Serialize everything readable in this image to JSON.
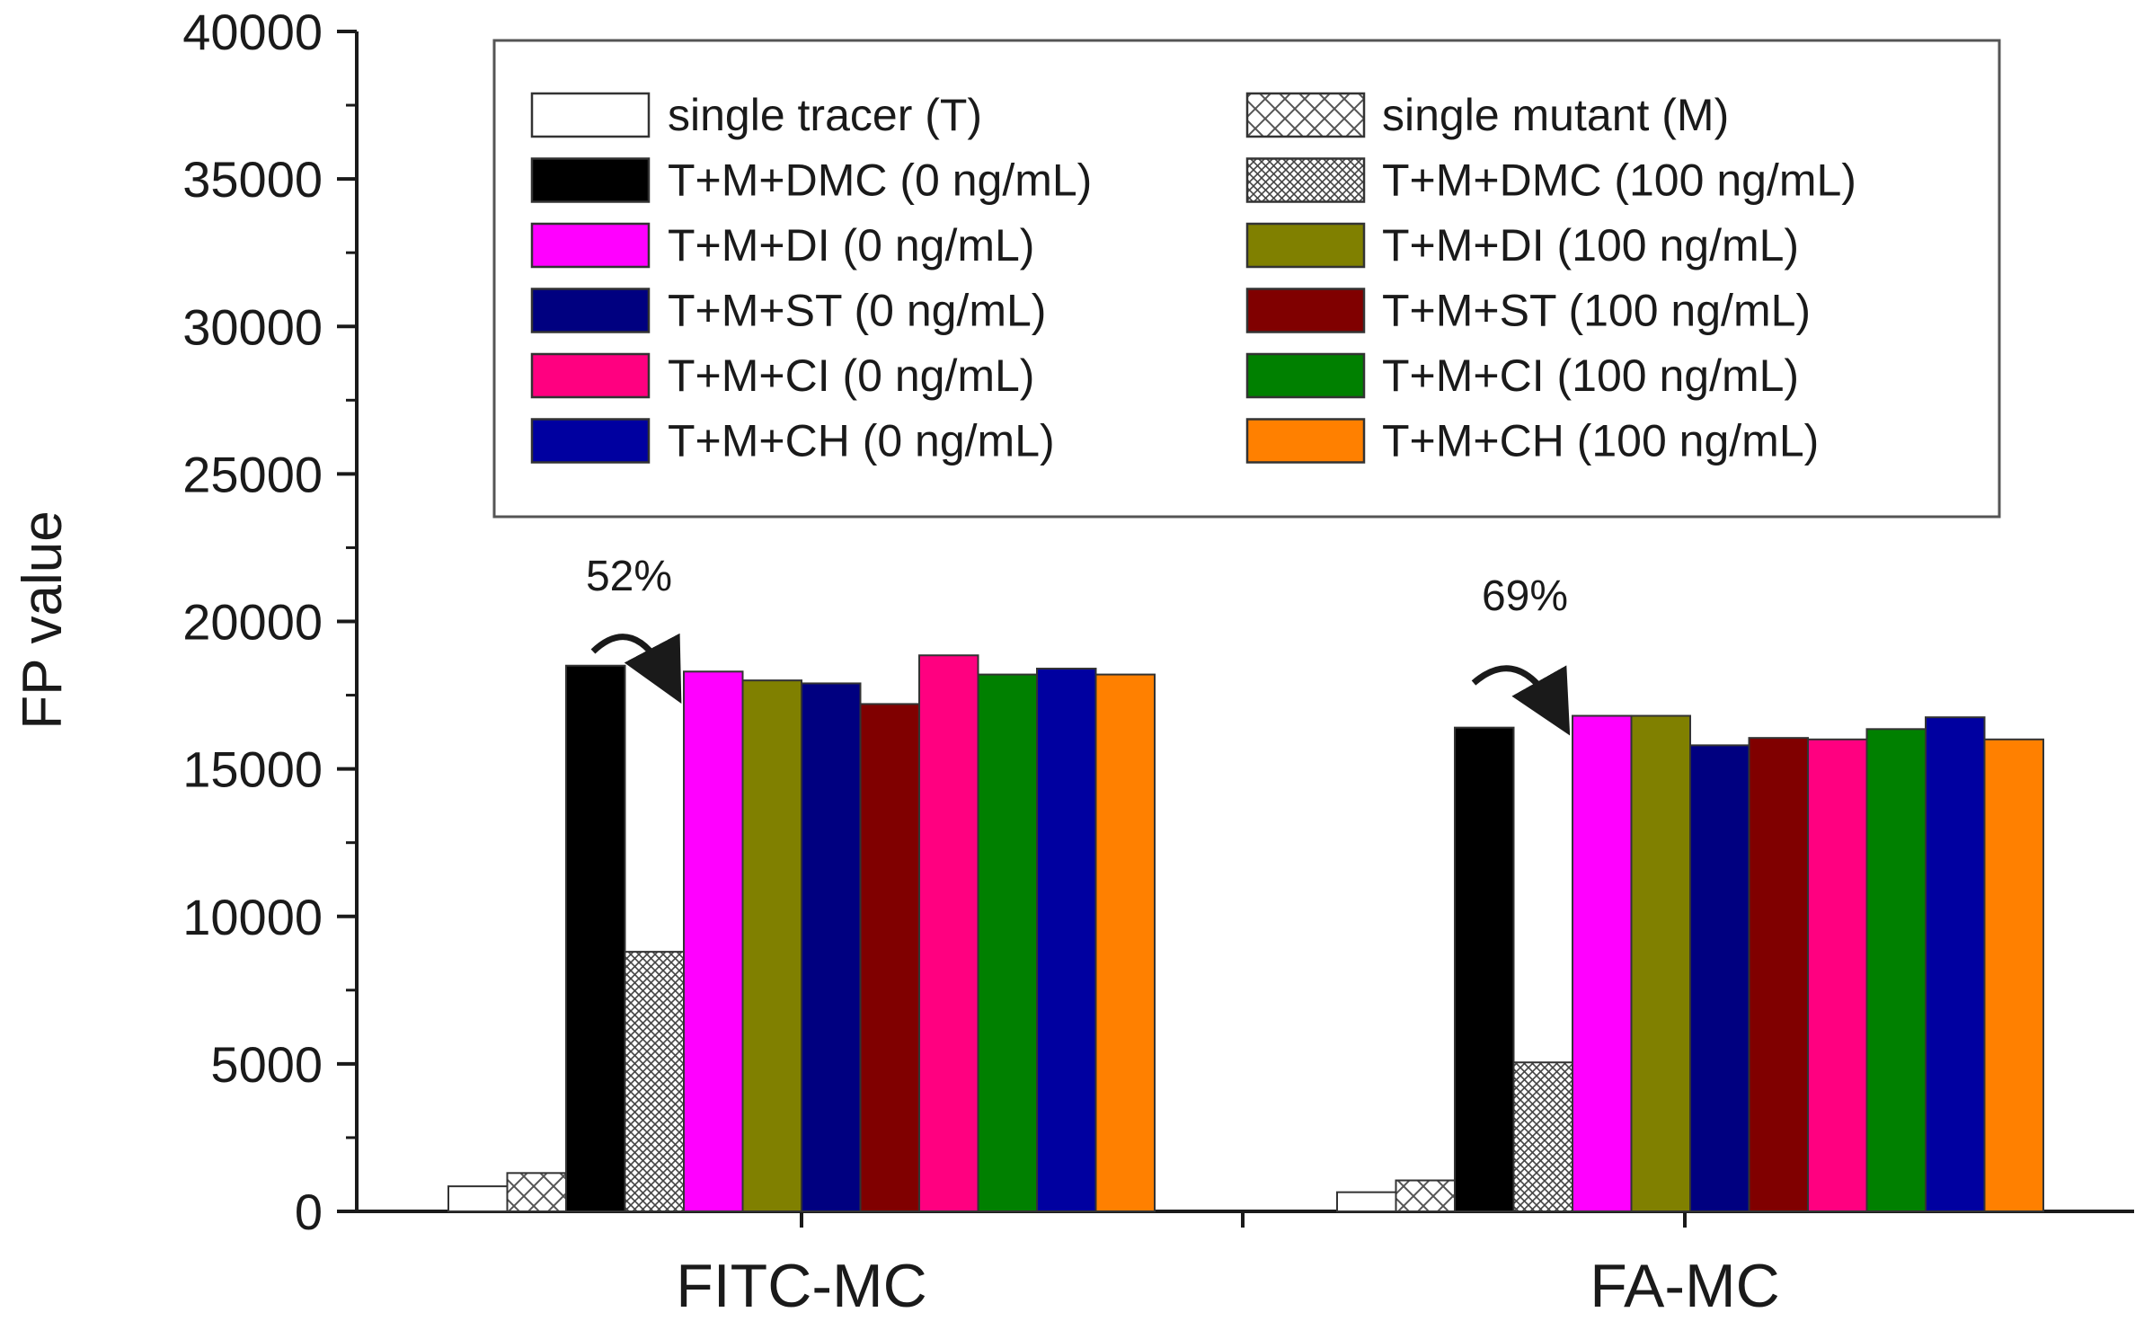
{
  "chart_data": {
    "type": "bar",
    "title": "",
    "xlabel": "",
    "ylabel": "FP value",
    "ylim": [
      0,
      40000
    ],
    "yticks": [
      0,
      5000,
      10000,
      15000,
      20000,
      25000,
      30000,
      35000,
      40000
    ],
    "ytick_labels": [
      "0",
      "5000",
      "10000",
      "15000",
      "20000",
      "25000",
      "30000",
      "35000",
      "40000"
    ],
    "categories": [
      "FITC-MC",
      "FA-MC"
    ],
    "legend_position": "top, two columns",
    "series": [
      {
        "name": "single tracer (T)",
        "color": "#ffffff",
        "pattern": "none",
        "values": [
          850,
          650
        ]
      },
      {
        "name": "single mutant (M)",
        "color": "#ffffff",
        "pattern": "crosshatch",
        "values": [
          1300,
          1050
        ]
      },
      {
        "name": "T+M+DMC (0 ng/mL)",
        "color": "#000000",
        "pattern": "none",
        "values": [
          18500,
          16400
        ]
      },
      {
        "name": "T+M+DMC (100 ng/mL)",
        "color": "#ffffff",
        "pattern": "dense-crosshatch",
        "values": [
          8800,
          5050
        ]
      },
      {
        "name": "T+M+DI (0 ng/mL)",
        "color": "#ff00ff",
        "pattern": "none",
        "values": [
          18300,
          16800
        ]
      },
      {
        "name": "T+M+DI (100 ng/mL)",
        "color": "#808000",
        "pattern": "none",
        "values": [
          18000,
          16800
        ]
      },
      {
        "name": "T+M+ST (0 ng/mL)",
        "color": "#000080",
        "pattern": "none",
        "values": [
          17900,
          15800
        ]
      },
      {
        "name": "T+M+ST (100 ng/mL)",
        "color": "#800000",
        "pattern": "none",
        "values": [
          17200,
          16050
        ]
      },
      {
        "name": "T+M+CI (0 ng/mL)",
        "color": "#ff0080",
        "pattern": "none",
        "values": [
          18850,
          16000
        ]
      },
      {
        "name": "T+M+CI (100 ng/mL)",
        "color": "#008000",
        "pattern": "none",
        "values": [
          18200,
          16350
        ]
      },
      {
        "name": "T+M+CH (0 ng/mL)",
        "color": "#0000a0",
        "pattern": "none",
        "values": [
          18400,
          16750
        ]
      },
      {
        "name": "T+M+CH (100 ng/mL)",
        "color": "#ff8000",
        "pattern": "none",
        "values": [
          18200,
          16000
        ]
      }
    ],
    "annotations": [
      {
        "text": "52%",
        "category": "FITC-MC",
        "from_series": "T+M+DMC (0 ng/mL)",
        "to_series": "T+M+DMC (100 ng/mL)"
      },
      {
        "text": "69%",
        "category": "FA-MC",
        "from_series": "T+M+DMC (0 ng/mL)",
        "to_series": "T+M+DMC (100 ng/mL)"
      }
    ]
  }
}
